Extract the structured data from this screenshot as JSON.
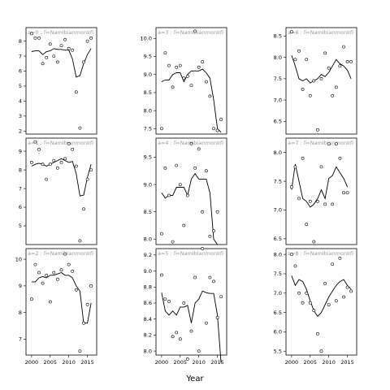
{
  "xlabel": "Year",
  "x_ticks": [
    2000,
    2005,
    2010,
    2015
  ],
  "chart_data": [
    {
      "type": "scatter+line",
      "strip": "a=0 : f=Namibianmonkfi",
      "xlim": [
        1998.5,
        2017.5
      ],
      "ylim": [
        1.8,
        8.9
      ],
      "y_ticks": [
        2,
        3,
        4,
        5,
        6,
        7,
        8
      ],
      "points": [
        [
          2000,
          8.5
        ],
        [
          2001,
          8.2
        ],
        [
          2002,
          8.2
        ],
        [
          2003,
          6.5
        ],
        [
          2004,
          6.9
        ],
        [
          2005,
          7.8
        ],
        [
          2006,
          7.0
        ],
        [
          2007,
          6.6
        ],
        [
          2008,
          7.7
        ],
        [
          2009,
          8.1
        ],
        [
          2010,
          7.5
        ],
        [
          2011,
          7.4
        ],
        [
          2012,
          4.6
        ],
        [
          2013,
          2.2
        ],
        [
          2014,
          6.6
        ],
        [
          2015,
          8.0
        ],
        [
          2016,
          8.2
        ]
      ],
      "line": [
        [
          2000,
          7.3
        ],
        [
          2001,
          7.35
        ],
        [
          2002,
          7.35
        ],
        [
          2003,
          7.1
        ],
        [
          2004,
          7.3
        ],
        [
          2005,
          7.35
        ],
        [
          2006,
          7.5
        ],
        [
          2007,
          7.45
        ],
        [
          2008,
          7.45
        ],
        [
          2009,
          7.4
        ],
        [
          2010,
          7.4
        ],
        [
          2011,
          6.8
        ],
        [
          2012,
          5.6
        ],
        [
          2013,
          5.7
        ],
        [
          2014,
          6.5
        ],
        [
          2015,
          7.1
        ],
        [
          2016,
          7.5
        ]
      ]
    },
    {
      "type": "scatter+line",
      "strip": "a=3 : f=Namibianmonkfi",
      "xlim": [
        1998.5,
        2017.5
      ],
      "ylim": [
        7.35,
        10.3
      ],
      "y_ticks": [
        7.5,
        8.0,
        8.5,
        9.0,
        9.5,
        10.0
      ],
      "points": [
        [
          2000,
          7.5
        ],
        [
          2001,
          9.6
        ],
        [
          2002,
          9.25
        ],
        [
          2003,
          8.65
        ],
        [
          2004,
          9.2
        ],
        [
          2005,
          9.25
        ],
        [
          2006,
          8.9
        ],
        [
          2007,
          8.95
        ],
        [
          2008,
          8.7
        ],
        [
          2009,
          10.2
        ],
        [
          2010,
          9.2
        ],
        [
          2011,
          9.35
        ],
        [
          2012,
          8.8
        ],
        [
          2013,
          8.4
        ],
        [
          2014,
          7.5
        ],
        [
          2015,
          7.45
        ],
        [
          2016,
          7.75
        ]
      ],
      "line": [
        [
          2000,
          8.8
        ],
        [
          2001,
          8.85
        ],
        [
          2002,
          8.85
        ],
        [
          2003,
          9.0
        ],
        [
          2004,
          9.05
        ],
        [
          2005,
          9.05
        ],
        [
          2006,
          8.8
        ],
        [
          2007,
          9.0
        ],
        [
          2008,
          9.1
        ],
        [
          2009,
          9.1
        ],
        [
          2010,
          9.1
        ],
        [
          2011,
          9.15
        ],
        [
          2012,
          9.05
        ],
        [
          2013,
          8.9
        ],
        [
          2014,
          8.3
        ],
        [
          2015,
          7.5
        ],
        [
          2016,
          7.4
        ]
      ]
    },
    {
      "type": "scatter+line",
      "strip": "a=6 : f=Namibianmonkfi",
      "xlim": [
        1998.5,
        2017.5
      ],
      "ylim": [
        6.2,
        8.7
      ],
      "y_ticks": [
        6.5,
        7.0,
        7.5,
        8.0,
        8.5
      ],
      "points": [
        [
          2000,
          8.6
        ],
        [
          2001,
          7.95
        ],
        [
          2002,
          8.15
        ],
        [
          2003,
          7.25
        ],
        [
          2004,
          7.95
        ],
        [
          2005,
          7.1
        ],
        [
          2006,
          7.45
        ],
        [
          2007,
          6.3
        ],
        [
          2008,
          7.5
        ],
        [
          2009,
          8.1
        ],
        [
          2010,
          7.75
        ],
        [
          2011,
          7.1
        ],
        [
          2012,
          7.3
        ],
        [
          2013,
          7.8
        ],
        [
          2014,
          8.25
        ],
        [
          2015,
          7.9
        ],
        [
          2016,
          7.9
        ]
      ],
      "line": [
        [
          2000,
          8.05
        ],
        [
          2001,
          7.8
        ],
        [
          2002,
          7.5
        ],
        [
          2003,
          7.45
        ],
        [
          2004,
          7.5
        ],
        [
          2005,
          7.4
        ],
        [
          2006,
          7.45
        ],
        [
          2007,
          7.5
        ],
        [
          2008,
          7.6
        ],
        [
          2009,
          7.55
        ],
        [
          2010,
          7.65
        ],
        [
          2011,
          7.8
        ],
        [
          2012,
          7.95
        ],
        [
          2013,
          7.85
        ],
        [
          2014,
          7.8
        ],
        [
          2015,
          7.7
        ],
        [
          2016,
          7.5
        ]
      ]
    },
    {
      "type": "scatter+line",
      "strip": "a=1 : f=Namibianmonkfi",
      "xlim": [
        1998.5,
        2017.5
      ],
      "ylim": [
        4.0,
        9.7
      ],
      "y_ticks": [
        5,
        6,
        7,
        8,
        9
      ],
      "points": [
        [
          2000,
          8.4
        ],
        [
          2001,
          9.5
        ],
        [
          2002,
          9.1
        ],
        [
          2003,
          8.3
        ],
        [
          2004,
          7.5
        ],
        [
          2005,
          8.3
        ],
        [
          2006,
          8.5
        ],
        [
          2007,
          8.1
        ],
        [
          2008,
          8.4
        ],
        [
          2009,
          8.6
        ],
        [
          2010,
          9.4
        ],
        [
          2011,
          9.1
        ],
        [
          2012,
          8.2
        ],
        [
          2013,
          4.2
        ],
        [
          2014,
          5.9
        ],
        [
          2015,
          7.5
        ],
        [
          2016,
          8.0
        ]
      ],
      "line": [
        [
          2000,
          8.2
        ],
        [
          2001,
          8.3
        ],
        [
          2002,
          8.35
        ],
        [
          2003,
          8.3
        ],
        [
          2004,
          8.2
        ],
        [
          2005,
          8.3
        ],
        [
          2006,
          8.4
        ],
        [
          2007,
          8.5
        ],
        [
          2008,
          8.6
        ],
        [
          2009,
          8.5
        ],
        [
          2010,
          8.4
        ],
        [
          2011,
          8.45
        ],
        [
          2012,
          7.8
        ],
        [
          2013,
          6.6
        ],
        [
          2014,
          6.65
        ],
        [
          2015,
          7.6
        ],
        [
          2016,
          8.3
        ]
      ]
    },
    {
      "type": "scatter+line",
      "strip": "a=4 : f=Namibianmonkfi",
      "xlim": [
        1998.5,
        2017.5
      ],
      "ylim": [
        7.9,
        9.85
      ],
      "y_ticks": [
        8.0,
        8.5,
        9.0,
        9.5
      ],
      "points": [
        [
          2000,
          8.1
        ],
        [
          2001,
          9.3
        ],
        [
          2002,
          8.8
        ],
        [
          2003,
          7.95
        ],
        [
          2004,
          9.35
        ],
        [
          2005,
          9.0
        ],
        [
          2006,
          8.25
        ],
        [
          2007,
          8.8
        ],
        [
          2008,
          9.75
        ],
        [
          2009,
          9.3
        ],
        [
          2010,
          9.65
        ],
        [
          2011,
          8.5
        ],
        [
          2012,
          9.25
        ],
        [
          2013,
          8.05
        ],
        [
          2014,
          8.15
        ],
        [
          2015,
          8.5
        ]
      ],
      "line": [
        [
          2000,
          8.85
        ],
        [
          2001,
          8.75
        ],
        [
          2002,
          8.8
        ],
        [
          2003,
          8.8
        ],
        [
          2004,
          8.95
        ],
        [
          2005,
          8.95
        ],
        [
          2006,
          8.95
        ],
        [
          2007,
          8.8
        ],
        [
          2008,
          9.1
        ],
        [
          2009,
          9.2
        ],
        [
          2010,
          9.1
        ],
        [
          2011,
          9.1
        ],
        [
          2012,
          9.1
        ],
        [
          2013,
          8.85
        ],
        [
          2014,
          8.0
        ],
        [
          2015,
          7.9
        ]
      ]
    },
    {
      "type": "scatter+line",
      "strip": "a=7 : f=Namibianmonkfi",
      "xlim": [
        1998.5,
        2017.5
      ],
      "ylim": [
        6.4,
        8.25
      ],
      "y_ticks": [
        6.5,
        7.0,
        7.5,
        8.0
      ],
      "points": [
        [
          2000,
          7.4
        ],
        [
          2001,
          7.75
        ],
        [
          2002,
          7.2
        ],
        [
          2003,
          7.9
        ],
        [
          2004,
          6.75
        ],
        [
          2005,
          7.15
        ],
        [
          2006,
          6.45
        ],
        [
          2007,
          7.15
        ],
        [
          2008,
          7.75
        ],
        [
          2009,
          7.1
        ],
        [
          2010,
          8.15
        ],
        [
          2011,
          7.1
        ],
        [
          2012,
          8.15
        ],
        [
          2013,
          7.9
        ],
        [
          2014,
          7.3
        ],
        [
          2015,
          7.3
        ]
      ],
      "line": [
        [
          2000,
          7.35
        ],
        [
          2001,
          7.8
        ],
        [
          2002,
          7.5
        ],
        [
          2003,
          7.2
        ],
        [
          2004,
          7.15
        ],
        [
          2005,
          7.05
        ],
        [
          2006,
          7.1
        ],
        [
          2007,
          7.2
        ],
        [
          2008,
          7.35
        ],
        [
          2009,
          7.2
        ],
        [
          2010,
          7.55
        ],
        [
          2011,
          7.6
        ],
        [
          2012,
          7.75
        ],
        [
          2013,
          7.65
        ],
        [
          2014,
          7.55
        ],
        [
          2015,
          7.4
        ]
      ]
    },
    {
      "type": "scatter+line",
      "strip": "a=2 : f=Namibianmonkfi",
      "xlim": [
        1998.5,
        2017.5
      ],
      "ylim": [
        6.4,
        10.4
      ],
      "y_ticks": [
        7,
        8,
        9,
        10
      ],
      "points": [
        [
          2000,
          8.5
        ],
        [
          2001,
          9.8
        ],
        [
          2002,
          9.5
        ],
        [
          2003,
          9.1
        ],
        [
          2004,
          9.4
        ],
        [
          2005,
          8.4
        ],
        [
          2006,
          9.5
        ],
        [
          2007,
          9.25
        ],
        [
          2008,
          9.6
        ],
        [
          2009,
          10.2
        ],
        [
          2010,
          9.8
        ],
        [
          2011,
          9.55
        ],
        [
          2012,
          8.85
        ],
        [
          2013,
          6.55
        ],
        [
          2014,
          7.6
        ],
        [
          2015,
          8.3
        ],
        [
          2016,
          9.0
        ]
      ],
      "line": [
        [
          2000,
          9.15
        ],
        [
          2001,
          9.15
        ],
        [
          2002,
          9.3
        ],
        [
          2003,
          9.35
        ],
        [
          2004,
          9.3
        ],
        [
          2005,
          9.4
        ],
        [
          2006,
          9.4
        ],
        [
          2007,
          9.45
        ],
        [
          2008,
          9.5
        ],
        [
          2009,
          9.4
        ],
        [
          2010,
          9.4
        ],
        [
          2011,
          9.3
        ],
        [
          2012,
          9.0
        ],
        [
          2013,
          8.8
        ],
        [
          2014,
          7.6
        ],
        [
          2015,
          7.6
        ],
        [
          2016,
          8.35
        ]
      ]
    },
    {
      "type": "scatter+line",
      "strip": "a=5 : f=Namibianmonkfi",
      "xlim": [
        1998.5,
        2017.5
      ],
      "ylim": [
        7.95,
        9.28
      ],
      "y_ticks": [
        8.0,
        8.2,
        8.4,
        8.6,
        8.8,
        9.0,
        9.2
      ],
      "points": [
        [
          2000,
          8.95
        ],
        [
          2001,
          8.65
        ],
        [
          2002,
          8.62
        ],
        [
          2003,
          8.18
        ],
        [
          2004,
          8.23
        ],
        [
          2005,
          8.15
        ],
        [
          2006,
          8.6
        ],
        [
          2007,
          7.9
        ],
        [
          2008,
          8.25
        ],
        [
          2009,
          8.92
        ],
        [
          2010,
          8.0
        ],
        [
          2011,
          9.28
        ],
        [
          2012,
          8.35
        ],
        [
          2013,
          8.92
        ],
        [
          2014,
          8.87
        ],
        [
          2015,
          8.42
        ],
        [
          2016,
          8.68
        ]
      ],
      "line": [
        [
          2000,
          8.73
        ],
        [
          2001,
          8.5
        ],
        [
          2002,
          8.45
        ],
        [
          2003,
          8.5
        ],
        [
          2004,
          8.45
        ],
        [
          2005,
          8.55
        ],
        [
          2006,
          8.55
        ],
        [
          2007,
          8.57
        ],
        [
          2008,
          8.35
        ],
        [
          2009,
          8.6
        ],
        [
          2010,
          8.65
        ],
        [
          2011,
          8.75
        ],
        [
          2012,
          8.73
        ],
        [
          2013,
          8.72
        ],
        [
          2014,
          8.72
        ],
        [
          2015,
          8.45
        ],
        [
          2016,
          7.85
        ]
      ]
    },
    {
      "type": "scatter+line",
      "strip": "a=8 : f=Namibianmonkfi",
      "xlim": [
        1998.5,
        2017.5
      ],
      "ylim": [
        5.4,
        8.15
      ],
      "y_ticks": [
        5.5,
        6.0,
        6.5,
        7.0,
        7.5,
        8.0
      ],
      "points": [
        [
          2000,
          8.0
        ],
        [
          2001,
          7.7
        ],
        [
          2002,
          7.0
        ],
        [
          2003,
          6.75
        ],
        [
          2004,
          7.0
        ],
        [
          2005,
          6.75
        ],
        [
          2006,
          6.55
        ],
        [
          2007,
          5.95
        ],
        [
          2008,
          5.5
        ],
        [
          2009,
          7.25
        ],
        [
          2010,
          6.7
        ],
        [
          2011,
          7.75
        ],
        [
          2012,
          6.8
        ],
        [
          2013,
          7.9
        ],
        [
          2014,
          6.9
        ],
        [
          2015,
          7.15
        ],
        [
          2016,
          7.05
        ]
      ],
      "line": [
        [
          2000,
          7.45
        ],
        [
          2001,
          7.2
        ],
        [
          2002,
          7.35
        ],
        [
          2003,
          7.3
        ],
        [
          2004,
          7.1
        ],
        [
          2005,
          6.8
        ],
        [
          2006,
          6.55
        ],
        [
          2007,
          6.4
        ],
        [
          2008,
          6.5
        ],
        [
          2009,
          6.7
        ],
        [
          2010,
          6.9
        ],
        [
          2011,
          7.05
        ],
        [
          2012,
          7.2
        ],
        [
          2013,
          7.3
        ],
        [
          2014,
          7.35
        ],
        [
          2015,
          7.2
        ],
        [
          2016,
          7.1
        ]
      ]
    }
  ]
}
